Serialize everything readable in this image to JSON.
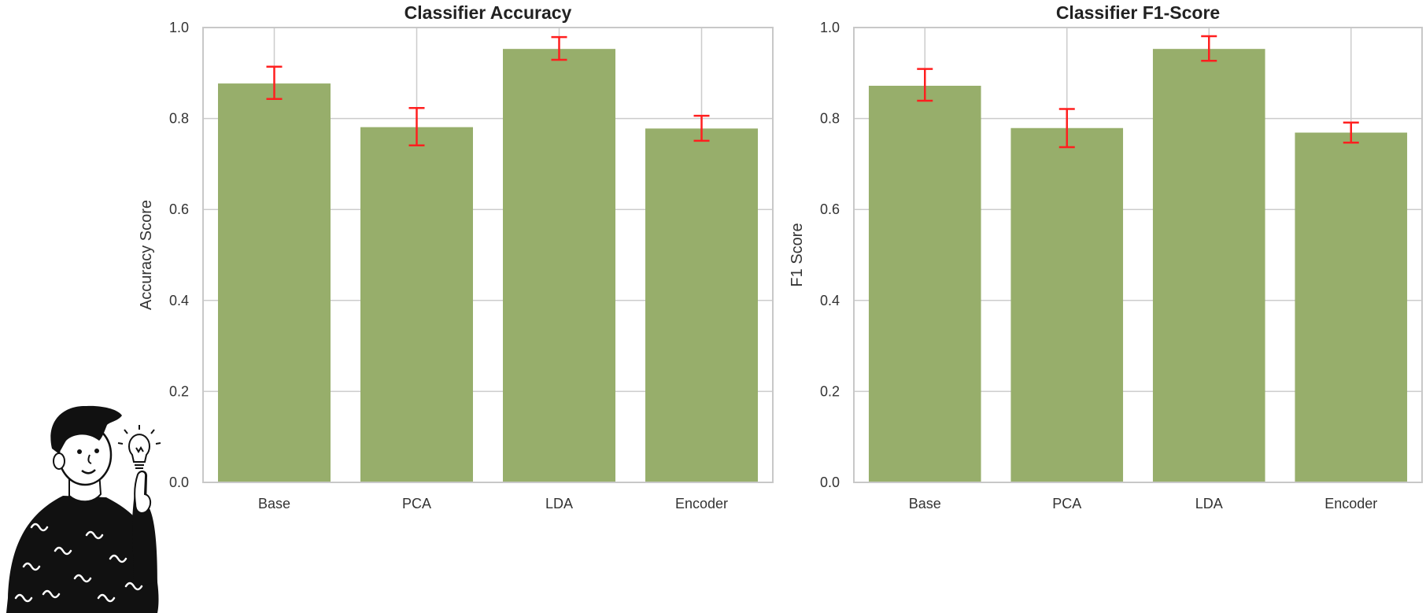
{
  "colors": {
    "bar": "#97ae6b",
    "error": "#ff1f1f",
    "grid": "#cccccc"
  },
  "mascot": {
    "icon": "thinking-person-lightbulb-icon"
  },
  "chart_data": [
    {
      "type": "bar",
      "title": "Classifier Accuracy",
      "xlabel": "",
      "ylabel": "Accuracy Score",
      "categories": [
        "Base",
        "PCA",
        "LDA",
        "Encoder"
      ],
      "values": [
        0.877,
        0.781,
        0.953,
        0.778
      ],
      "error_low": [
        0.843,
        0.741,
        0.929,
        0.751
      ],
      "error_high": [
        0.914,
        0.823,
        0.979,
        0.806
      ],
      "ylim": [
        0,
        1.0
      ],
      "yticks": [
        0.0,
        0.2,
        0.4,
        0.6,
        0.8,
        1.0
      ],
      "ytick_labels": [
        "0.0",
        "0.2",
        "0.4",
        "0.6",
        "0.8",
        "1.0"
      ],
      "grid": true
    },
    {
      "type": "bar",
      "title": "Classifier F1-Score",
      "xlabel": "",
      "ylabel": "F1 Score",
      "categories": [
        "Base",
        "PCA",
        "LDA",
        "Encoder"
      ],
      "values": [
        0.872,
        0.779,
        0.953,
        0.769
      ],
      "error_low": [
        0.839,
        0.737,
        0.927,
        0.747
      ],
      "error_high": [
        0.909,
        0.821,
        0.981,
        0.791
      ],
      "ylim": [
        0,
        1.0
      ],
      "yticks": [
        0.0,
        0.2,
        0.4,
        0.6,
        0.8,
        1.0
      ],
      "ytick_labels": [
        "0.0",
        "0.2",
        "0.4",
        "0.6",
        "0.8",
        "1.0"
      ],
      "grid": true
    }
  ]
}
